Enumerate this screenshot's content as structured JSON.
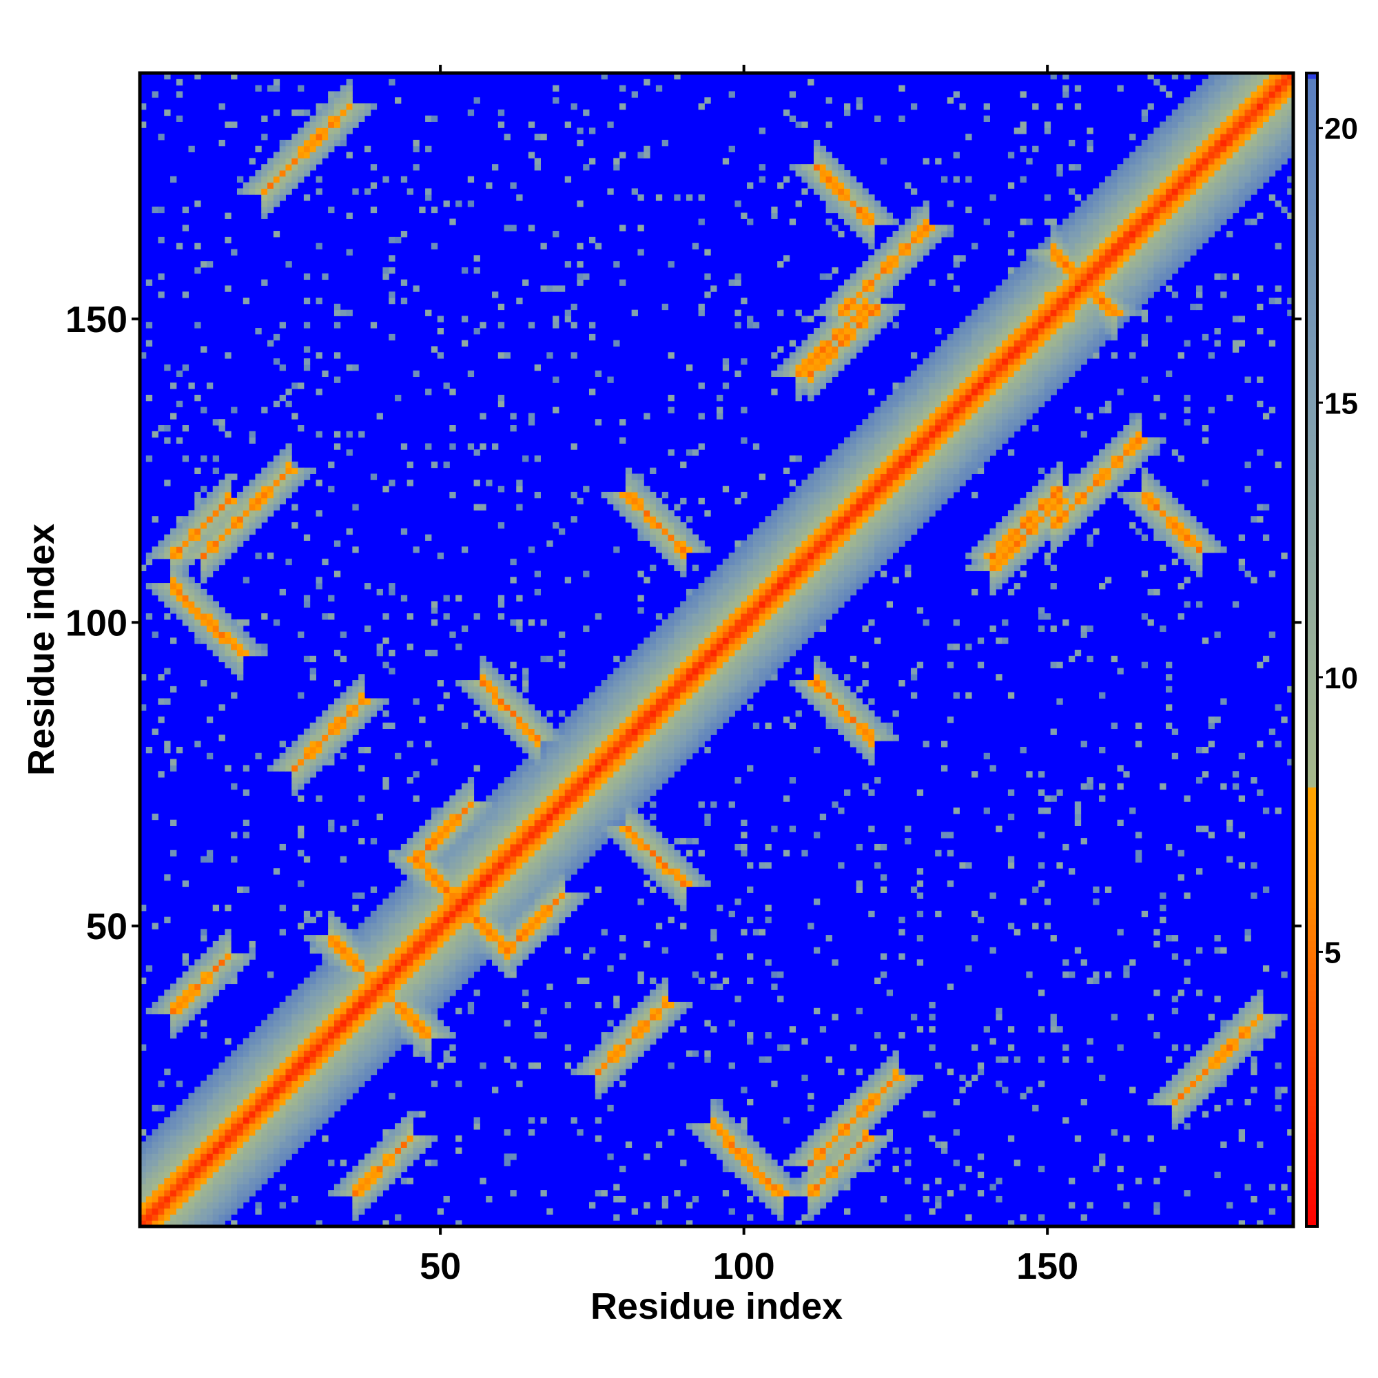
{
  "chart_data": {
    "type": "heatmap",
    "title": "",
    "xlabel": "Residue index",
    "ylabel": "Residue index",
    "n": 190,
    "xlim": [
      0.5,
      190.5
    ],
    "ylim": [
      0.5,
      190.5
    ],
    "x_ticks": [
      50,
      100,
      150
    ],
    "y_ticks": [
      50,
      100,
      150
    ],
    "x_tick_labels": [
      "50",
      "100",
      "150"
    ],
    "y_tick_labels": [
      "50",
      "100",
      "150"
    ],
    "colorbar": {
      "range": [
        0,
        21
      ],
      "ticks": [
        5,
        10,
        15,
        20
      ],
      "tick_labels": [
        "5",
        "10",
        "15",
        "20"
      ],
      "stops": [
        {
          "value": 0,
          "color": "#ff0000"
        },
        {
          "value": 6,
          "color": "#ff8c00"
        },
        {
          "value": 8,
          "color": "#ffa500"
        },
        {
          "value": 8.01,
          "color": "#a6b98a"
        },
        {
          "value": 15,
          "color": "#7f9fb2"
        },
        {
          "value": 20.9,
          "color": "#5a7fc0"
        },
        {
          "value": 21,
          "color": "#0000ff"
        }
      ]
    },
    "background_color": "#0000ff",
    "description_values": {
      "diagonal_value": 0,
      "cap_value": 21
    },
    "contact_bands": [
      {
        "i": 5,
        "j": 105,
        "len": 12,
        "dir": "anti"
      },
      {
        "i": 38,
        "j": 40,
        "len": 10,
        "dir": "anti"
      },
      {
        "i": 10,
        "j": 110,
        "len": 15,
        "dir": "parallel"
      },
      {
        "i": 45,
        "j": 60,
        "len": 14,
        "dir": "anti"
      },
      {
        "i": 75,
        "j": 25,
        "len": 12,
        "dir": "parallel"
      },
      {
        "i": 80,
        "j": 65,
        "len": 10,
        "dir": "anti"
      },
      {
        "i": 110,
        "j": 140,
        "len": 12,
        "dir": "parallel"
      },
      {
        "i": 115,
        "j": 150,
        "len": 15,
        "dir": "parallel"
      },
      {
        "i": 150,
        "j": 160,
        "len": 10,
        "dir": "anti"
      },
      {
        "i": 140,
        "j": 108,
        "len": 12,
        "dir": "parallel"
      },
      {
        "i": 165,
        "j": 120,
        "len": 10,
        "dir": "anti"
      },
      {
        "i": 35,
        "j": 5,
        "len": 10,
        "dir": "parallel"
      },
      {
        "i": 110,
        "j": 5,
        "len": 10,
        "dir": "parallel"
      },
      {
        "i": 80,
        "j": 120,
        "len": 10,
        "dir": "anti"
      },
      {
        "i": 20,
        "j": 170,
        "len": 15,
        "dir": "parallel"
      },
      {
        "i": 60,
        "j": 45,
        "len": 10,
        "dir": "parallel"
      }
    ]
  }
}
